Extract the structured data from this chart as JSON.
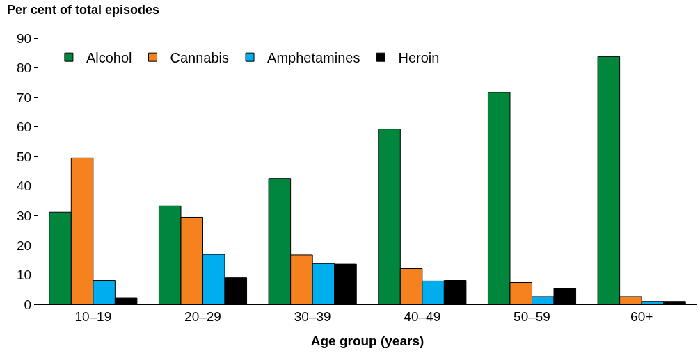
{
  "chart_data": {
    "type": "bar",
    "title": "Per cent of total episodes",
    "xlabel": "Age group (years)",
    "categories": [
      "10–19",
      "20–29",
      "30–39",
      "40–49",
      "50–59",
      "60+"
    ],
    "series": [
      {
        "name": "Alcohol",
        "color": "#00873d",
        "values": [
          31.2,
          33.3,
          42.6,
          59.3,
          71.7,
          83.8
        ]
      },
      {
        "name": "Cannabis",
        "color": "#f5821f",
        "values": [
          49.5,
          29.5,
          16.7,
          12.1,
          7.4,
          2.6
        ]
      },
      {
        "name": "Amphetamines",
        "color": "#00aeef",
        "values": [
          8.1,
          16.9,
          13.8,
          7.9,
          2.6,
          1.0
        ]
      },
      {
        "name": "Heroin",
        "color": "#000000",
        "values": [
          2.1,
          9.0,
          13.6,
          8.1,
          5.5,
          1.0
        ]
      }
    ],
    "ylim": [
      0,
      90
    ],
    "yticks": [
      0,
      10,
      20,
      30,
      40,
      50,
      60,
      70,
      80,
      90
    ],
    "legend": "top left"
  }
}
